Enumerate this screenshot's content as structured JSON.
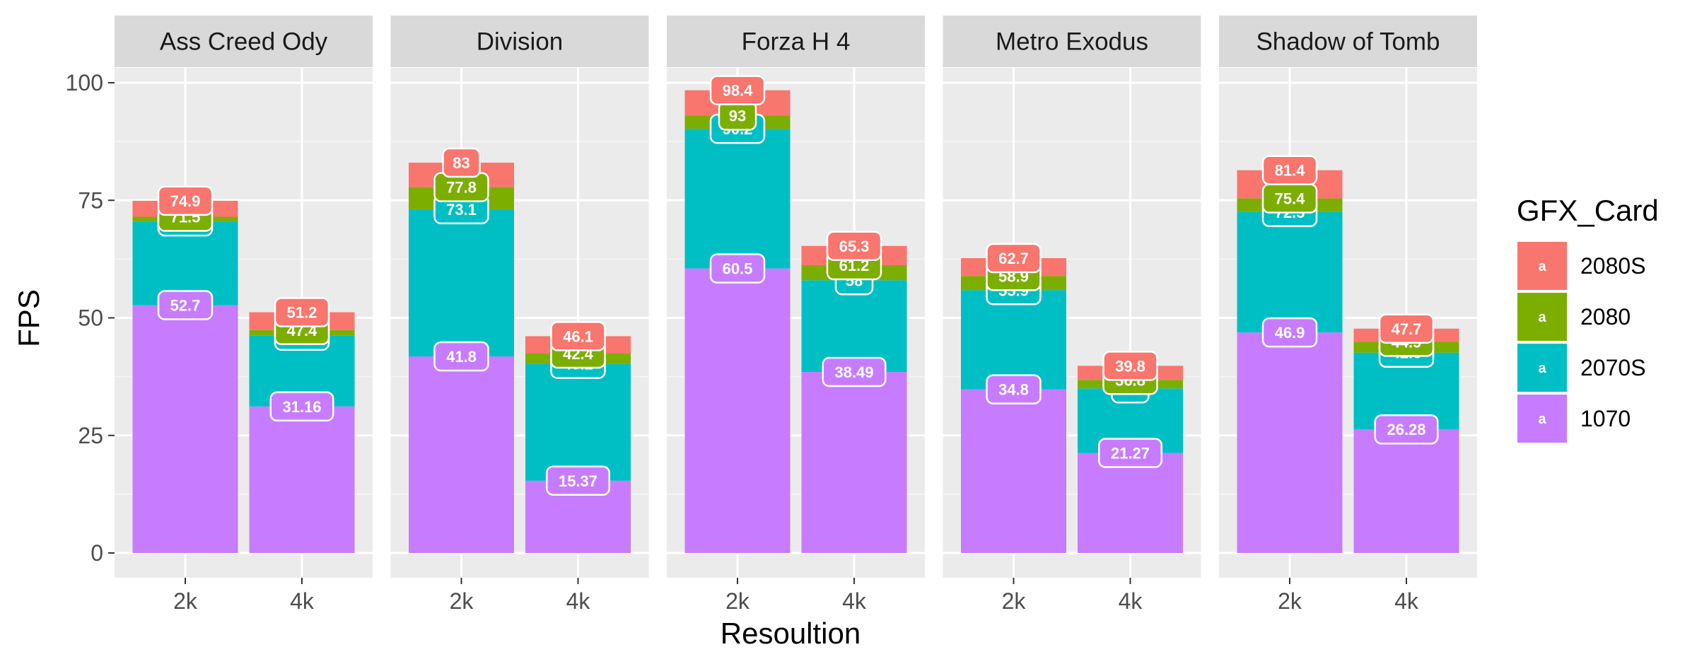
{
  "chart_data": {
    "type": "bar",
    "stacked": true,
    "xlabel": "Resoultion",
    "ylabel": "FPS",
    "ylim": [
      0,
      100
    ],
    "yticks": [
      0,
      25,
      50,
      75,
      100
    ],
    "categories": [
      "2k",
      "4k"
    ],
    "legend": {
      "title": "GFX_Card",
      "placement": "right",
      "key_glyph": "a",
      "entries": [
        "2080S",
        "2080",
        "2070S",
        "1070"
      ]
    },
    "series_order_bottom_to_top": [
      "1070",
      "2070S",
      "2080",
      "2080S"
    ],
    "colors": {
      "1070": "#C77CFF",
      "2070S": "#00BFC4",
      "2080": "#7CAE00",
      "2080S": "#F8766D"
    },
    "panels": [
      {
        "title": "Ass Creed Ody",
        "values": {
          "2k": {
            "1070": 52.7,
            "2070S": 70.5,
            "2080": 71.5,
            "2080S": 74.9
          },
          "4k": {
            "1070": 31.16,
            "2070S": 46.2,
            "2080": 47.4,
            "2080S": 51.2
          }
        }
      },
      {
        "title": "Division",
        "values": {
          "2k": {
            "1070": 41.8,
            "2070S": 73.1,
            "2080": 77.8,
            "2080S": 83
          },
          "4k": {
            "1070": 15.37,
            "2070S": 40.2,
            "2080": 42.4,
            "2080S": 46.1
          }
        }
      },
      {
        "title": "Forza H 4",
        "values": {
          "2k": {
            "1070": 60.5,
            "2070S": 90.2,
            "2080": 93.0,
            "2080S": 98.4
          },
          "4k": {
            "1070": 38.49,
            "2070S": 58,
            "2080": 61.2,
            "2080S": 65.3
          }
        }
      },
      {
        "title": "Metro Exodus",
        "values": {
          "2k": {
            "1070": 34.8,
            "2070S": 55.9,
            "2080": 58.9,
            "2080S": 62.7
          },
          "4k": {
            "1070": 21.27,
            "2070S": 35,
            "2080": 36.8,
            "2080S": 39.8
          }
        }
      },
      {
        "title": "Shadow of Tomb",
        "values": {
          "2k": {
            "1070": 46.9,
            "2070S": 72.5,
            "2080": 75.4,
            "2080S": 81.4
          },
          "4k": {
            "1070": 26.28,
            "2070S": 42.6,
            "2080": 44.9,
            "2080S": 47.7
          }
        }
      }
    ]
  }
}
